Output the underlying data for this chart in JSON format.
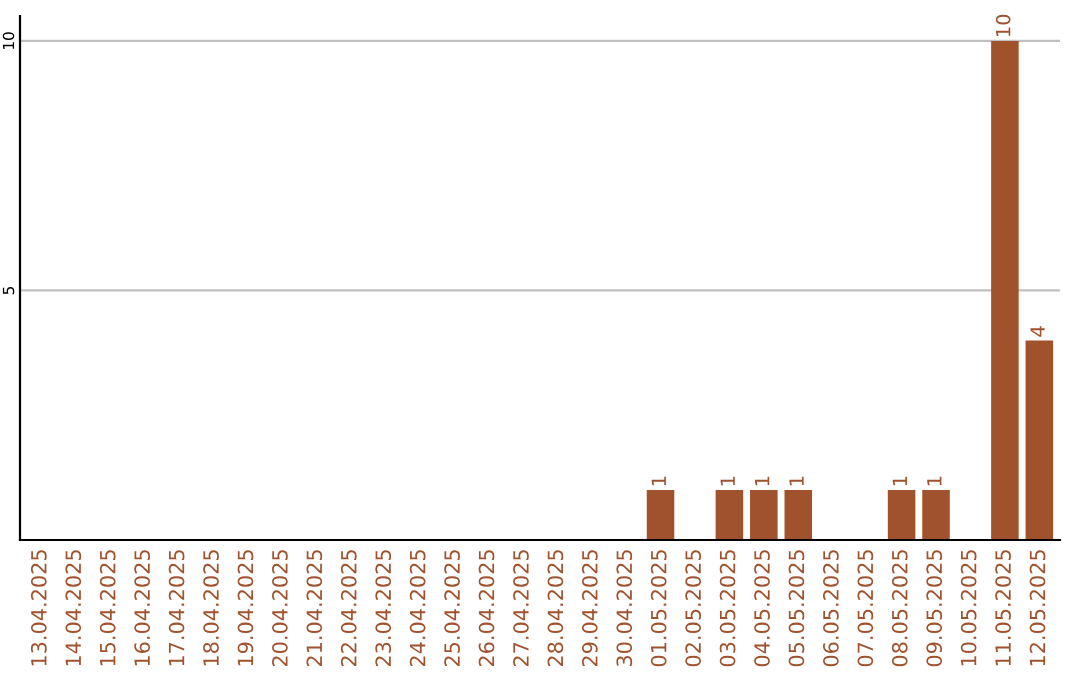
{
  "chart_data": {
    "type": "bar",
    "categories": [
      "13.04.2025",
      "14.04.2025",
      "15.04.2025",
      "16.04.2025",
      "17.04.2025",
      "18.04.2025",
      "19.04.2025",
      "20.04.2025",
      "21.04.2025",
      "22.04.2025",
      "23.04.2025",
      "24.04.2025",
      "25.04.2025",
      "26.04.2025",
      "27.04.2025",
      "28.04.2025",
      "29.04.2025",
      "30.04.2025",
      "01.05.2025",
      "02.05.2025",
      "03.05.2025",
      "04.05.2025",
      "05.05.2025",
      "06.05.2025",
      "07.05.2025",
      "08.05.2025",
      "09.05.2025",
      "10.05.2025",
      "11.05.2025",
      "12.05.2025"
    ],
    "values": [
      0,
      0,
      0,
      0,
      0,
      0,
      0,
      0,
      0,
      0,
      0,
      0,
      0,
      0,
      0,
      0,
      0,
      0,
      1,
      0,
      1,
      1,
      1,
      0,
      0,
      1,
      1,
      0,
      10,
      4
    ],
    "value_labels": [
      null,
      null,
      null,
      null,
      null,
      null,
      null,
      null,
      null,
      null,
      null,
      null,
      null,
      null,
      null,
      null,
      null,
      null,
      "1",
      null,
      "1",
      "1",
      "1",
      null,
      null,
      "1",
      "1",
      null,
      "10",
      "4"
    ],
    "color": "#a0522d",
    "ylim": [
      0,
      10.5
    ],
    "yticks": [
      5,
      10
    ],
    "grid": "y",
    "legend": false
  }
}
